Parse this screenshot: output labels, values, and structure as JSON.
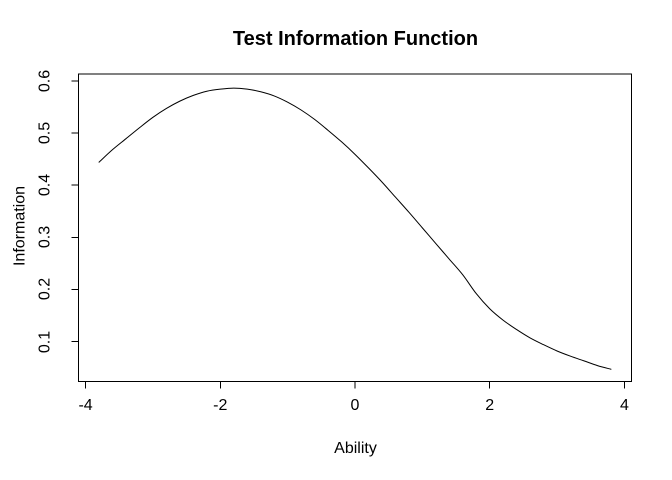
{
  "figure": {
    "background": "#ffffff",
    "foreground": "#000000"
  },
  "chart_data": {
    "type": "line",
    "title": "Test Information Function",
    "xlabel": "Ability",
    "ylabel": "Information",
    "grid": false,
    "legend": "none",
    "line_color": "#000000",
    "axis_color": "#000000",
    "x_tick_values": [
      -4,
      -2,
      0,
      2,
      4
    ],
    "x_tick_labels": [
      "-4",
      "-2",
      "0",
      "2",
      "4"
    ],
    "y_tick_values": [
      0.1,
      0.2,
      0.3,
      0.4,
      0.5,
      0.6
    ],
    "y_tick_labels": [
      "0.1",
      "0.2",
      "0.3",
      "0.4",
      "0.5",
      "0.6"
    ],
    "xlim": [
      -4.105,
      4.105
    ],
    "ylim": [
      0.0235,
      0.613
    ],
    "peak": {
      "x": -1.8,
      "y": 0.586
    },
    "series": [
      {
        "name": "Test Information",
        "x": [
          -3.8,
          -3.6,
          -3.4,
          -3.2,
          -3.0,
          -2.8,
          -2.6,
          -2.4,
          -2.2,
          -2.0,
          -1.8,
          -1.6,
          -1.4,
          -1.2,
          -1.0,
          -0.8,
          -0.6,
          -0.4,
          -0.2,
          0.0,
          0.2,
          0.4,
          0.6,
          0.8,
          1.0,
          1.2,
          1.4,
          1.6,
          1.8,
          2.0,
          2.2,
          2.4,
          2.6,
          2.8,
          3.0,
          3.2,
          3.4,
          3.6,
          3.8
        ],
        "y": [
          0.444,
          0.468,
          0.489,
          0.51,
          0.53,
          0.547,
          0.561,
          0.572,
          0.58,
          0.584,
          0.586,
          0.584,
          0.579,
          0.571,
          0.559,
          0.544,
          0.526,
          0.505,
          0.483,
          0.459,
          0.433,
          0.406,
          0.377,
          0.348,
          0.318,
          0.288,
          0.258,
          0.228,
          0.192,
          0.163,
          0.141,
          0.123,
          0.107,
          0.094,
          0.082,
          0.072,
          0.063,
          0.054,
          0.047
        ]
      }
    ]
  }
}
